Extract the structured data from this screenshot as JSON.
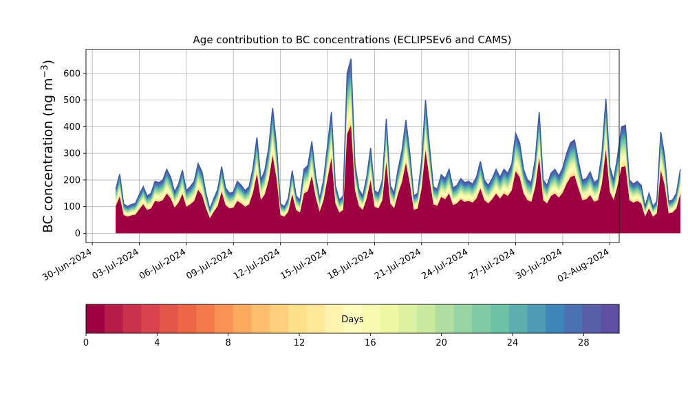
{
  "chart_data": {
    "type": "area",
    "title": "Age contribution to BC concentrations (ECLIPSEv6 and CAMS)",
    "ylabel_main": "BC concentration (ng m",
    "ylabel_sup": "−3",
    "ylabel_close": ")",
    "ylim": [
      -35,
      690
    ],
    "yticks": [
      0,
      100,
      200,
      300,
      400,
      500,
      600
    ],
    "x_domain": [
      "2024-06-30",
      "2024-08-02"
    ],
    "x_range_padding_days": [
      -0.4,
      0.6
    ],
    "xtick_labels": [
      "30-Jun-2024",
      "03-Jul-2024",
      "06-Jul-2024",
      "09-Jul-2024",
      "12-Jul-2024",
      "15-Jul-2024",
      "18-Jul-2024",
      "21-Jul-2024",
      "24-Jul-2024",
      "27-Jul-2024",
      "30-Jul-2024",
      "02-Aug-2024"
    ],
    "xtick_dates": [
      "2024-06-30",
      "2024-07-03",
      "2024-07-06",
      "2024-07-09",
      "2024-07-12",
      "2024-07-15",
      "2024-07-18",
      "2024-07-21",
      "2024-07-24",
      "2024-07-27",
      "2024-07-30",
      "2024-08-02"
    ],
    "grid": true,
    "total_series": {
      "name": "total",
      "points": [
        [
          "2024-07-01T12:00",
          165
        ],
        [
          "2024-07-01T18:00",
          222
        ],
        [
          "2024-07-02T00:00",
          110
        ],
        [
          "2024-07-02T06:00",
          100
        ],
        [
          "2024-07-02T12:00",
          108
        ],
        [
          "2024-07-02T18:00",
          112
        ],
        [
          "2024-07-03T00:00",
          145
        ],
        [
          "2024-07-03T06:00",
          175
        ],
        [
          "2024-07-03T12:00",
          140
        ],
        [
          "2024-07-03T18:00",
          150
        ],
        [
          "2024-07-04T00:00",
          195
        ],
        [
          "2024-07-04T06:00",
          190
        ],
        [
          "2024-07-04T12:00",
          200
        ],
        [
          "2024-07-04T18:00",
          240
        ],
        [
          "2024-07-05T00:00",
          210
        ],
        [
          "2024-07-05T06:00",
          155
        ],
        [
          "2024-07-05T12:00",
          185
        ],
        [
          "2024-07-05T18:00",
          237
        ],
        [
          "2024-07-06T00:00",
          160
        ],
        [
          "2024-07-06T06:00",
          175
        ],
        [
          "2024-07-06T12:00",
          195
        ],
        [
          "2024-07-06T18:00",
          262
        ],
        [
          "2024-07-07T00:00",
          230
        ],
        [
          "2024-07-07T06:00",
          150
        ],
        [
          "2024-07-07T12:00",
          90
        ],
        [
          "2024-07-07T18:00",
          130
        ],
        [
          "2024-07-08T00:00",
          165
        ],
        [
          "2024-07-08T06:00",
          250
        ],
        [
          "2024-07-08T12:00",
          170
        ],
        [
          "2024-07-08T18:00",
          150
        ],
        [
          "2024-07-09T00:00",
          155
        ],
        [
          "2024-07-09T06:00",
          195
        ],
        [
          "2024-07-09T12:00",
          180
        ],
        [
          "2024-07-09T18:00",
          160
        ],
        [
          "2024-07-10T00:00",
          175
        ],
        [
          "2024-07-10T06:00",
          245
        ],
        [
          "2024-07-10T12:00",
          360
        ],
        [
          "2024-07-10T18:00",
          200
        ],
        [
          "2024-07-11T00:00",
          235
        ],
        [
          "2024-07-11T06:00",
          320
        ],
        [
          "2024-07-11T12:00",
          470
        ],
        [
          "2024-07-11T18:00",
          330
        ],
        [
          "2024-07-12T00:00",
          110
        ],
        [
          "2024-07-12T06:00",
          100
        ],
        [
          "2024-07-12T12:00",
          130
        ],
        [
          "2024-07-12T18:00",
          235
        ],
        [
          "2024-07-13T00:00",
          140
        ],
        [
          "2024-07-13T06:00",
          125
        ],
        [
          "2024-07-13T12:00",
          240
        ],
        [
          "2024-07-13T18:00",
          255
        ],
        [
          "2024-07-14T00:00",
          345
        ],
        [
          "2024-07-14T06:00",
          215
        ],
        [
          "2024-07-14T12:00",
          130
        ],
        [
          "2024-07-14T18:00",
          200
        ],
        [
          "2024-07-15T00:00",
          330
        ],
        [
          "2024-07-15T06:00",
          455
        ],
        [
          "2024-07-15T12:00",
          180
        ],
        [
          "2024-07-15T18:00",
          125
        ],
        [
          "2024-07-16T00:00",
          140
        ],
        [
          "2024-07-16T06:00",
          600
        ],
        [
          "2024-07-16T12:00",
          655
        ],
        [
          "2024-07-16T18:00",
          260
        ],
        [
          "2024-07-17T00:00",
          165
        ],
        [
          "2024-07-17T06:00",
          140
        ],
        [
          "2024-07-17T12:00",
          210
        ],
        [
          "2024-07-17T18:00",
          320
        ],
        [
          "2024-07-18T00:00",
          160
        ],
        [
          "2024-07-18T06:00",
          150
        ],
        [
          "2024-07-18T12:00",
          200
        ],
        [
          "2024-07-18T18:00",
          430
        ],
        [
          "2024-07-19T00:00",
          180
        ],
        [
          "2024-07-19T06:00",
          150
        ],
        [
          "2024-07-19T12:00",
          240
        ],
        [
          "2024-07-19T18:00",
          310
        ],
        [
          "2024-07-20T00:00",
          425
        ],
        [
          "2024-07-20T06:00",
          300
        ],
        [
          "2024-07-20T12:00",
          140
        ],
        [
          "2024-07-20T18:00",
          150
        ],
        [
          "2024-07-21T00:00",
          270
        ],
        [
          "2024-07-21T06:00",
          500
        ],
        [
          "2024-07-21T12:00",
          330
        ],
        [
          "2024-07-21T18:00",
          175
        ],
        [
          "2024-07-22T00:00",
          165
        ],
        [
          "2024-07-22T06:00",
          220
        ],
        [
          "2024-07-22T12:00",
          205
        ],
        [
          "2024-07-22T18:00",
          240
        ],
        [
          "2024-07-23T00:00",
          170
        ],
        [
          "2024-07-23T06:00",
          180
        ],
        [
          "2024-07-23T12:00",
          205
        ],
        [
          "2024-07-23T18:00",
          190
        ],
        [
          "2024-07-24T00:00",
          195
        ],
        [
          "2024-07-24T06:00",
          185
        ],
        [
          "2024-07-24T12:00",
          210
        ],
        [
          "2024-07-24T18:00",
          270
        ],
        [
          "2024-07-25T00:00",
          200
        ],
        [
          "2024-07-25T06:00",
          180
        ],
        [
          "2024-07-25T12:00",
          205
        ],
        [
          "2024-07-25T18:00",
          240
        ],
        [
          "2024-07-26T00:00",
          210
        ],
        [
          "2024-07-26T06:00",
          240
        ],
        [
          "2024-07-26T12:00",
          225
        ],
        [
          "2024-07-26T18:00",
          260
        ],
        [
          "2024-07-27T00:00",
          375
        ],
        [
          "2024-07-27T06:00",
          340
        ],
        [
          "2024-07-27T12:00",
          240
        ],
        [
          "2024-07-27T18:00",
          200
        ],
        [
          "2024-07-28T00:00",
          190
        ],
        [
          "2024-07-28T06:00",
          280
        ],
        [
          "2024-07-28T12:00",
          455
        ],
        [
          "2024-07-28T18:00",
          200
        ],
        [
          "2024-07-29T00:00",
          180
        ],
        [
          "2024-07-29T06:00",
          225
        ],
        [
          "2024-07-29T12:00",
          240
        ],
        [
          "2024-07-29T18:00",
          215
        ],
        [
          "2024-07-30T00:00",
          245
        ],
        [
          "2024-07-30T06:00",
          300
        ],
        [
          "2024-07-30T12:00",
          340
        ],
        [
          "2024-07-30T18:00",
          350
        ],
        [
          "2024-07-31T00:00",
          270
        ],
        [
          "2024-07-31T06:00",
          200
        ],
        [
          "2024-07-31T12:00",
          205
        ],
        [
          "2024-07-31T18:00",
          230
        ],
        [
          "2024-08-01T00:00",
          190
        ],
        [
          "2024-08-01T06:00",
          200
        ],
        [
          "2024-08-01T12:00",
          300
        ],
        [
          "2024-08-01T18:00",
          505
        ],
        [
          "2024-08-02T00:00",
          250
        ],
        [
          "2024-08-02T06:00",
          200
        ],
        [
          "2024-08-02T12:00",
          290
        ],
        [
          "2024-08-02T18:00",
          400
        ],
        [
          "2024-08-03T00:00",
          405
        ],
        [
          "2024-08-03T06:00",
          200
        ],
        [
          "2024-08-03T12:00",
          185
        ],
        [
          "2024-08-03T18:00",
          195
        ],
        [
          "2024-08-04T00:00",
          180
        ],
        [
          "2024-08-04T06:00",
          100
        ],
        [
          "2024-08-04T12:00",
          150
        ],
        [
          "2024-08-04T18:00",
          100
        ],
        [
          "2024-08-05T00:00",
          120
        ],
        [
          "2024-08-05T06:00",
          380
        ],
        [
          "2024-08-05T12:00",
          290
        ],
        [
          "2024-08-05T18:00",
          120
        ],
        [
          "2024-08-06T00:00",
          125
        ],
        [
          "2024-08-06T06:00",
          150
        ],
        [
          "2024-08-06T12:00",
          240
        ]
      ]
    },
    "colorbar": {
      "label": "Days",
      "range": [
        0,
        30
      ],
      "ticks": [
        0,
        4,
        8,
        12,
        16,
        20,
        24,
        28
      ],
      "tick_labels": [
        "0",
        "4",
        "8",
        "12",
        "16",
        "20",
        "24",
        "28"
      ],
      "colors": [
        "#9e0142",
        "#b51c47",
        "#c9314c",
        "#d9434e",
        "#e4554a",
        "#ed6645",
        "#f57a4b",
        "#f99254",
        "#fcaa5f",
        "#fdbe6e",
        "#fed07e",
        "#fee08b",
        "#fee99a",
        "#fff3ad",
        "#fffebe",
        "#f7fbb1",
        "#eef8a3",
        "#ddf1a0",
        "#c8e99e",
        "#b0dea2",
        "#97d4a4",
        "#80cba5",
        "#6bc2a4",
        "#5cafac",
        "#4f9bb5",
        "#3f87bb",
        "#4a72b2",
        "#585ea7",
        "#5e4fa2"
      ]
    }
  }
}
